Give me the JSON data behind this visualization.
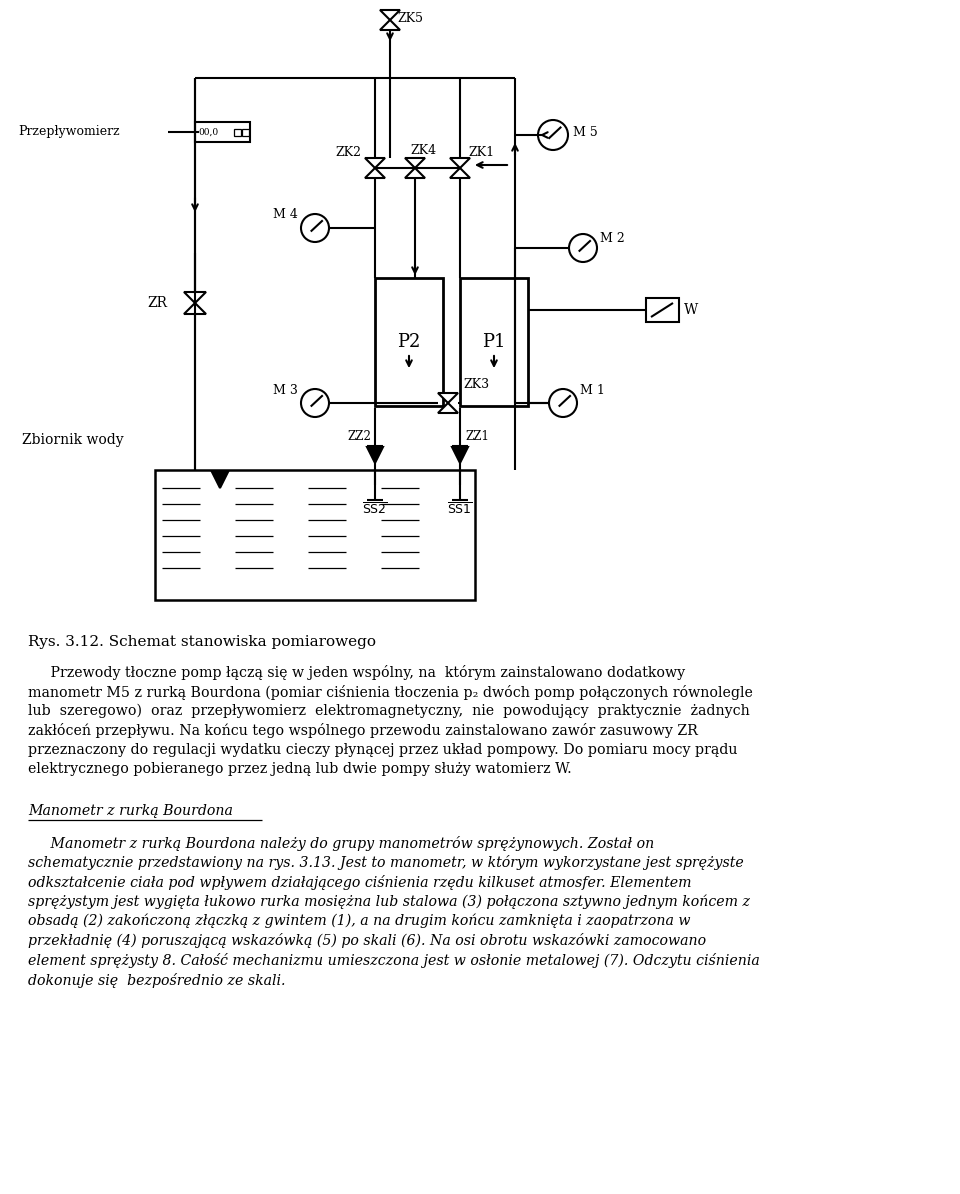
{
  "bg_color": "#ffffff",
  "fig_width": 9.6,
  "fig_height": 11.94,
  "caption": "Rys. 3.12. Schemat stanowiska pomiarowego",
  "p1_lines": [
    "     Przewody tłoczne pomp łączą się w jeden wspólny, na  którym zainstalowano dodatkowy",
    "manometr M5 z rurką Bourdona (pomiar ciśnienia tłoczenia p₂ dwóch pomp połączonych równolegle",
    "lub  szeregowo)  oraz  przepływomierz  elektromagnetyczny,  nie  powodujący  praktycznie  żadnych",
    "zakłóceń przepływu. Na końcu tego wspólnego przewodu zainstalowano zawór zasuwowy ZR",
    "przeznaczony do regulacji wydatku cieczy płynącej przez układ pompowy. Do pomiaru mocy prądu",
    "elektrycznego pobieranego przez jedną lub dwie pompy służy watomierz W."
  ],
  "section_header": "Manometr z rurką Bourdona",
  "p2_lines": [
    "     Manometr z rurką Bourdona należy do grupy manometrów sprężynowych. Został on",
    "schematycznie przedstawiony na rys. 3.13. Jest to manometr, w którym wykorzystane jest sprężyste",
    "odkształcenie ciała pod wpływem działającego ciśnienia rzędu kilkuset atmosfer. Elementem",
    "sprężystym jest wygięta łukowo rurka mosiężna lub stalowa (3) połączona sztywno jednym końcem z",
    "obsadą (2) zakończoną złączką z gwintem (1), a na drugim końcu zamknięta i zaopatrzona w",
    "przekładnię (4) poruszającą wskazówką (5) po skali (6). Na osi obrotu wskazówki zamocowano",
    "element sprężysty 8. Całość mechanizmu umieszczona jest w osłonie metalowej (7). Odczytu ciśnienia",
    "dokonuje się  bezpośrednio ze skali."
  ]
}
